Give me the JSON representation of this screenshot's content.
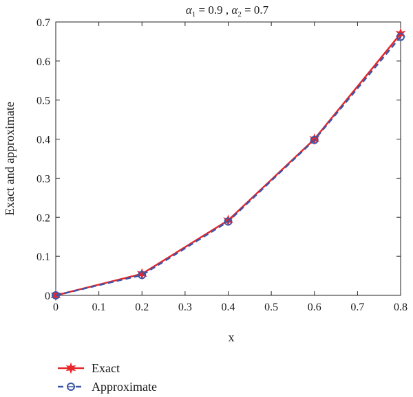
{
  "chart_data": {
    "type": "line",
    "title_parts": {
      "a1_symbol": "α",
      "a1_sub": "1",
      "a1_value": " = 0.9 , ",
      "a2_symbol": "α",
      "a2_sub": "2",
      "a2_value": " = 0.7"
    },
    "xlabel": "x",
    "ylabel": "Exact and approximate",
    "xlim": [
      0,
      0.8
    ],
    "ylim": [
      0,
      0.7
    ],
    "x_ticks": [
      "0",
      "0.1",
      "0.2",
      "0.3",
      "0.4",
      "0.5",
      "0.6",
      "0.7",
      "0.8"
    ],
    "y_ticks": [
      "0",
      "0.1",
      "0.2",
      "0.3",
      "0.4",
      "0.5",
      "0.6",
      "0.7"
    ],
    "grid": false,
    "legend_position": "bottom-left",
    "series": [
      {
        "name": "Exact",
        "color": "#e8262a",
        "line_style": "solid",
        "marker": "star",
        "x": [
          0,
          0.2,
          0.4,
          0.6,
          0.8
        ],
        "y": [
          0,
          0.055,
          0.192,
          0.4,
          0.67
        ]
      },
      {
        "name": "Approximate",
        "color": "#3b55a8",
        "line_style": "dashed",
        "marker": "circle",
        "x": [
          0,
          0.2,
          0.4,
          0.6,
          0.8
        ],
        "y": [
          0,
          0.052,
          0.189,
          0.398,
          0.662
        ]
      }
    ]
  }
}
